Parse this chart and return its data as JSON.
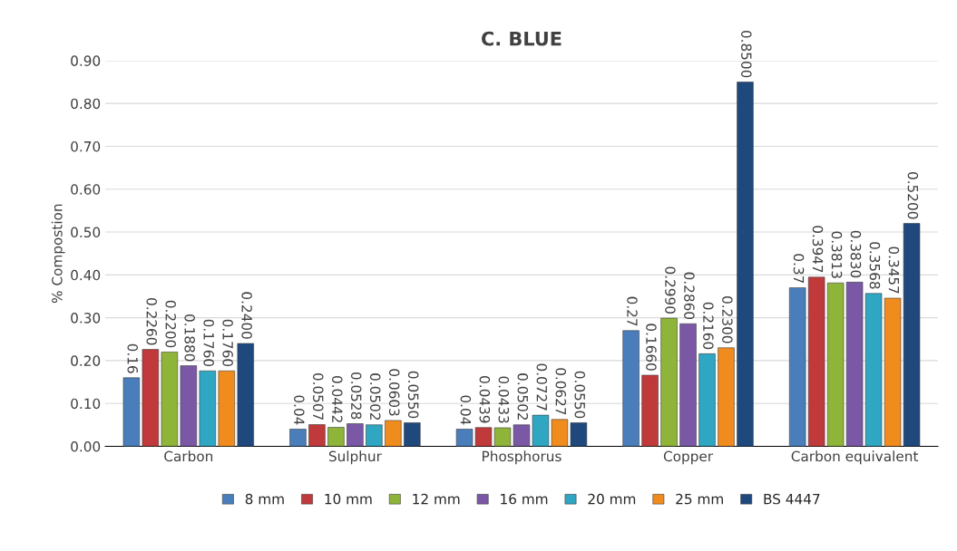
{
  "chart_data": {
    "type": "bar",
    "title": "C. BLUE",
    "ylabel": "% Compostion",
    "categories": [
      "Carbon",
      "Sulphur",
      "Phosphorus",
      "Copper",
      "Carbon equivalent"
    ],
    "series": [
      {
        "name": "8 mm",
        "color": "#4a7ebb",
        "values": [
          0.16,
          0.04,
          0.04,
          0.27,
          0.37
        ],
        "value_labels": [
          "0.16",
          "0.04",
          "0.04",
          "0.27",
          "0.37"
        ]
      },
      {
        "name": "10 mm",
        "color": "#c0393b",
        "values": [
          0.226,
          0.0507,
          0.0439,
          0.166,
          0.3947
        ],
        "value_labels": [
          "0.2260",
          "0.0507",
          "0.0439",
          "0.1660",
          "0.3947"
        ]
      },
      {
        "name": "12 mm",
        "color": "#8fb43a",
        "values": [
          0.22,
          0.0442,
          0.0433,
          0.299,
          0.3813
        ],
        "value_labels": [
          "0.2200",
          "0.0442",
          "0.0433",
          "0.2990",
          "0.3813"
        ]
      },
      {
        "name": "16 mm",
        "color": "#7b58a6",
        "values": [
          0.188,
          0.0528,
          0.0502,
          0.286,
          0.383
        ],
        "value_labels": [
          "0.1880",
          "0.0528",
          "0.0502",
          "0.2860",
          "0.3830"
        ]
      },
      {
        "name": "20 mm",
        "color": "#2fa6c2",
        "values": [
          0.176,
          0.0502,
          0.0727,
          0.216,
          0.3568
        ],
        "value_labels": [
          "0.1760",
          "0.0502",
          "0.0727",
          "0.2160",
          "0.3568"
        ]
      },
      {
        "name": "25 mm",
        "color": "#f08c1e",
        "values": [
          0.176,
          0.0603,
          0.0627,
          0.23,
          0.3457
        ],
        "value_labels": [
          "0.1760",
          "0.0603",
          "0.0627",
          "0.2300",
          "0.3457"
        ]
      },
      {
        "name": "BS 4447",
        "color": "#1f497d",
        "values": [
          0.24,
          0.055,
          0.055,
          0.85,
          0.52
        ],
        "value_labels": [
          "0.2400",
          "0.0550",
          "0.0550",
          "0.8500",
          "0.5200"
        ]
      }
    ],
    "ylim": [
      0,
      0.9
    ],
    "yticks": [
      {
        "value": 0,
        "label": "0.00"
      },
      {
        "value": 0.1,
        "label": "0.10"
      },
      {
        "value": 0.2,
        "label": "0.20"
      },
      {
        "value": 0.3,
        "label": "0.30"
      },
      {
        "value": 0.4,
        "label": "0.40"
      },
      {
        "value": 0.5,
        "label": "0.50"
      },
      {
        "value": 0.6,
        "label": "0.60"
      },
      {
        "value": 0.7,
        "label": "0.70"
      },
      {
        "value": 0.8,
        "label": "0.80"
      },
      {
        "value": 0.9,
        "label": "0.90"
      }
    ],
    "grid": "y",
    "legend": "bottom"
  }
}
